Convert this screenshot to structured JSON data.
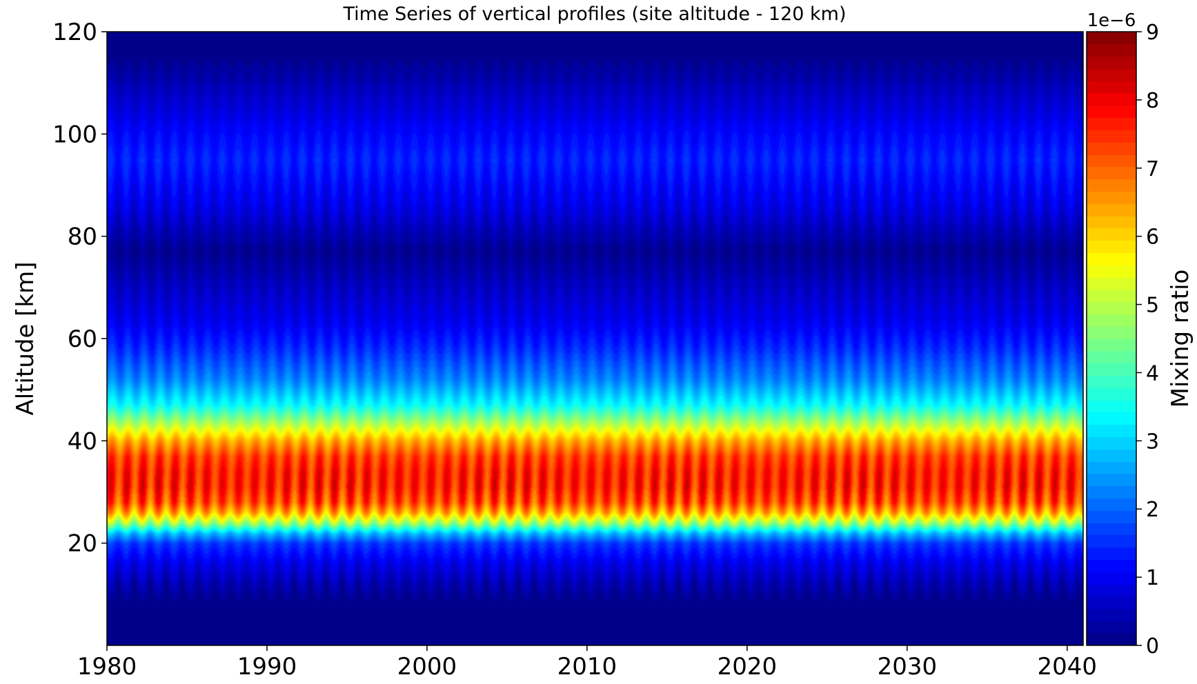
{
  "chart_data": {
    "type": "heatmap",
    "subtype": "filled contour",
    "title": "Time Series of vertical profiles (site altitude - 120 km)",
    "xlabel": "",
    "ylabel": "Altitude [km]",
    "xlim": [
      1980,
      2041
    ],
    "ylim": [
      0,
      120
    ],
    "xticks": [
      1980,
      1990,
      2000,
      2010,
      2020,
      2030,
      2040
    ],
    "xtick_labels": [
      "1980",
      "1990",
      "2000",
      "2010",
      "2020",
      "2030",
      "2040"
    ],
    "yticks": [
      20,
      40,
      60,
      80,
      100,
      120
    ],
    "ytick_labels": [
      "20",
      "40",
      "60",
      "80",
      "100",
      "120"
    ],
    "colormap": "jet",
    "grid": false,
    "colorbar": {
      "label": "Mixing ratio",
      "offset_text": "1e−6",
      "range": [
        0,
        9
      ],
      "ticks": [
        0,
        1,
        2,
        3,
        4,
        5,
        6,
        7,
        8,
        9
      ],
      "tick_labels": [
        "0",
        "1",
        "2",
        "3",
        "4",
        "5",
        "6",
        "7",
        "8",
        "9"
      ],
      "levels": 50
    },
    "seasonal_cycle_period_years": 1,
    "profile": [
      {
        "altitude": 0,
        "mean": 0.0,
        "amplitude": 0.0
      },
      {
        "altitude": 8,
        "mean": 0.05,
        "amplitude": 0.05
      },
      {
        "altitude": 12,
        "mean": 0.4,
        "amplitude": 0.3
      },
      {
        "altitude": 16,
        "mean": 0.9,
        "amplitude": 0.3
      },
      {
        "altitude": 20,
        "mean": 1.6,
        "amplitude": 0.3
      },
      {
        "altitude": 22,
        "mean": 2.8,
        "amplitude": 0.5
      },
      {
        "altitude": 24,
        "mean": 4.8,
        "amplitude": 1.0
      },
      {
        "altitude": 26,
        "mean": 6.3,
        "amplitude": 1.3
      },
      {
        "altitude": 28,
        "mean": 7.2,
        "amplitude": 1.6
      },
      {
        "altitude": 31,
        "mean": 7.6,
        "amplitude": 1.8
      },
      {
        "altitude": 34,
        "mean": 7.6,
        "amplitude": 1.6
      },
      {
        "altitude": 37,
        "mean": 7.3,
        "amplitude": 1.3
      },
      {
        "altitude": 40,
        "mean": 6.4,
        "amplitude": 0.9
      },
      {
        "altitude": 43,
        "mean": 5.1,
        "amplitude": 0.6
      },
      {
        "altitude": 47,
        "mean": 3.4,
        "amplitude": 0.5
      },
      {
        "altitude": 52,
        "mean": 2.3,
        "amplitude": 0.4
      },
      {
        "altitude": 58,
        "mean": 1.5,
        "amplitude": 0.3
      },
      {
        "altitude": 63,
        "mean": 1.0,
        "amplitude": 0.2
      },
      {
        "altitude": 68,
        "mean": 0.7,
        "amplitude": 0.2
      },
      {
        "altitude": 73,
        "mean": 0.4,
        "amplitude": 0.15
      },
      {
        "altitude": 77,
        "mean": 0.15,
        "amplitude": 0.15
      },
      {
        "altitude": 81,
        "mean": 0.45,
        "amplitude": 0.2
      },
      {
        "altitude": 86,
        "mean": 0.9,
        "amplitude": 0.35
      },
      {
        "altitude": 91,
        "mean": 1.2,
        "amplitude": 0.4
      },
      {
        "altitude": 95,
        "mean": 1.4,
        "amplitude": 0.45
      },
      {
        "altitude": 100,
        "mean": 1.15,
        "amplitude": 0.4
      },
      {
        "altitude": 105,
        "mean": 0.8,
        "amplitude": 0.35
      },
      {
        "altitude": 110,
        "mean": 0.45,
        "amplitude": 0.3
      },
      {
        "altitude": 115,
        "mean": 0.1,
        "amplitude": 0.1
      },
      {
        "altitude": 120,
        "mean": 0.0,
        "amplitude": 0.0
      }
    ]
  }
}
